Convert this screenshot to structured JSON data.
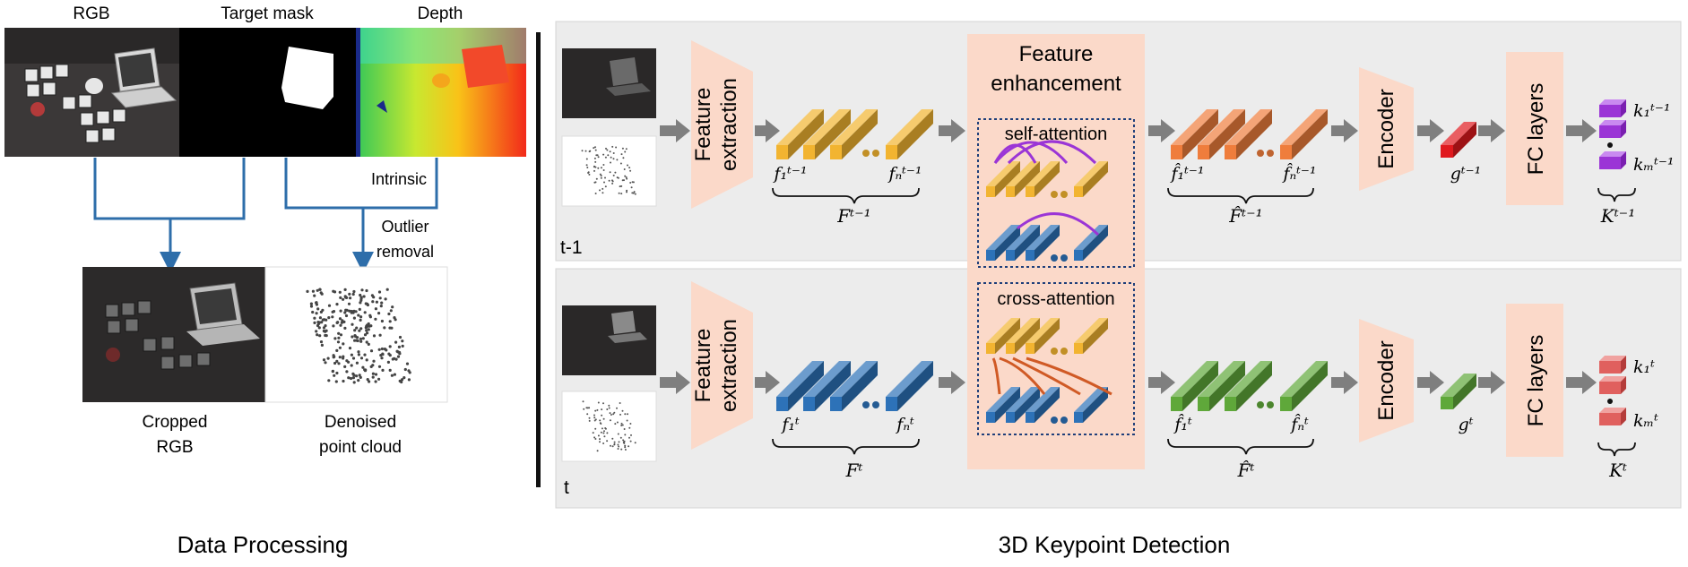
{
  "data_processing": {
    "rgb_label": "RGB",
    "mask_label": "Target mask",
    "depth_label": "Depth",
    "intrinsic_label": "Intrinsic",
    "outlier_line1": "Outlier",
    "outlier_line2": "removal",
    "cropped_line1": "Cropped",
    "cropped_line2": "RGB",
    "denoised_line1": "Denoised",
    "denoised_line2": "point cloud",
    "caption": "Data Processing"
  },
  "detection": {
    "caption": "3D Keypoint Detection",
    "feature_extraction_line1": "Feature",
    "feature_extraction_line2": "extraction",
    "feature_enhancement_line1": "Feature",
    "feature_enhancement_line2": "enhancement",
    "self_attention": "self-attention",
    "cross_attention": "cross-attention",
    "encoder": "Encoder",
    "fc_layers": "FC layers",
    "top_row": {
      "label": "t-1",
      "f1": "f₁ᵗ⁻¹",
      "fn": "fₙᵗ⁻¹",
      "F": "Fᵗ⁻¹",
      "fh1": "f̂₁ᵗ⁻¹",
      "fhn": "f̂ₙᵗ⁻¹",
      "Fh": "F̂ᵗ⁻¹",
      "g": "gᵗ⁻¹",
      "k1": "k₁ᵗ⁻¹",
      "km": "kₘᵗ⁻¹",
      "K": "Kᵗ⁻¹"
    },
    "bottom_row": {
      "label": "t",
      "f1": "f₁ᵗ",
      "fn": "fₙᵗ",
      "F": "Fᵗ",
      "fh1": "f̂₁ᵗ",
      "fhn": "f̂ₙᵗ",
      "Fh": "F̂ᵗ",
      "g": "gᵗ",
      "k1": "k₁ᵗ",
      "km": "kₘᵗ",
      "K": "Kᵗ"
    }
  },
  "colors": {
    "yellow": "#f2b430",
    "blue": "#2d72b8",
    "orange": "#ef7d3c",
    "green": "#5fa83a",
    "red": "#e0191e",
    "purple": "#9b35d6",
    "block_red": "#e0605e",
    "peach": "#fbd9c9",
    "panel": "#ececec",
    "arrow": "#7f7f7f",
    "link": "#2e6eaa",
    "self_arc": "#9b35d6",
    "cross_arc": "#d05a25"
  }
}
